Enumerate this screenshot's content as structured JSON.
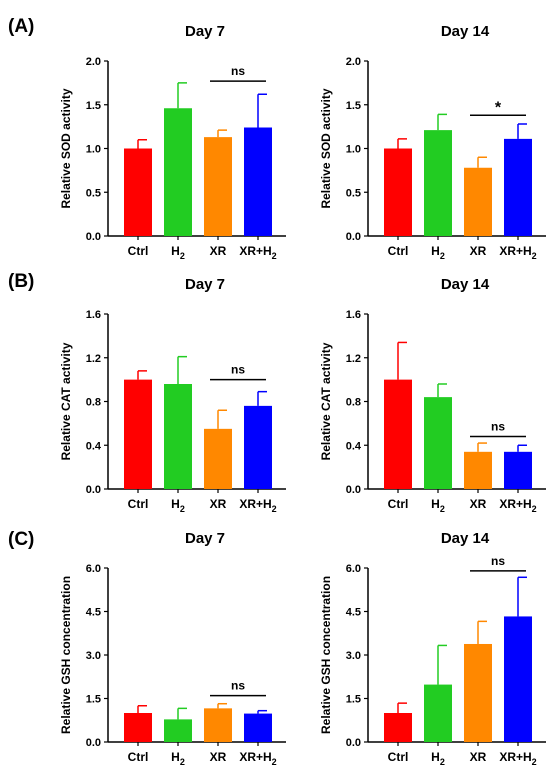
{
  "panel_labels": [
    "(A)",
    "(B)",
    "(C)"
  ],
  "chart_data": [
    {
      "type": "bar",
      "panel": "(A)",
      "title": "Day 7",
      "ylabel": "Relative SOD activity",
      "categories": [
        "Ctrl",
        "H2",
        "XR",
        "XR+H2"
      ],
      "category_parts": [
        [
          "Ctrl",
          ""
        ],
        [
          "H",
          "2"
        ],
        [
          "XR",
          ""
        ],
        [
          "XR+H",
          "2"
        ]
      ],
      "values": [
        1.0,
        1.46,
        1.13,
        1.24
      ],
      "errors": [
        0.1,
        0.29,
        0.08,
        0.38
      ],
      "colors": [
        "#ff0000",
        "#22cc22",
        "#ff8800",
        "#0000ff"
      ],
      "ylim": [
        0,
        2.0
      ],
      "yticks": [
        "0.0",
        "0.5",
        "1.0",
        "1.5",
        "2.0"
      ],
      "significance": [
        {
          "from": 2,
          "to": 3,
          "label": "ns",
          "y": 1.77
        }
      ],
      "grid": false,
      "legend": "none"
    },
    {
      "type": "bar",
      "panel": "(A)",
      "title": "Day 14",
      "ylabel": "Relative SOD activity",
      "categories": [
        "Ctrl",
        "H2",
        "XR",
        "XR+H2"
      ],
      "category_parts": [
        [
          "Ctrl",
          ""
        ],
        [
          "H",
          "2"
        ],
        [
          "XR",
          ""
        ],
        [
          "XR+H",
          "2"
        ]
      ],
      "values": [
        1.0,
        1.21,
        0.78,
        1.11
      ],
      "errors": [
        0.11,
        0.18,
        0.12,
        0.17
      ],
      "colors": [
        "#ff0000",
        "#22cc22",
        "#ff8800",
        "#0000ff"
      ],
      "ylim": [
        0,
        2.0
      ],
      "yticks": [
        "0.0",
        "0.5",
        "1.0",
        "1.5",
        "2.0"
      ],
      "significance": [
        {
          "from": 2,
          "to": 3,
          "label": "*",
          "y": 1.38
        }
      ],
      "grid": false,
      "legend": "none"
    },
    {
      "type": "bar",
      "panel": "(B)",
      "title": "Day 7",
      "ylabel": "Relative CAT activity",
      "categories": [
        "Ctrl",
        "H2",
        "XR",
        "XR+H2"
      ],
      "category_parts": [
        [
          "Ctrl",
          ""
        ],
        [
          "H",
          "2"
        ],
        [
          "XR",
          ""
        ],
        [
          "XR+H",
          "2"
        ]
      ],
      "values": [
        1.0,
        0.96,
        0.55,
        0.76
      ],
      "errors": [
        0.08,
        0.25,
        0.17,
        0.13
      ],
      "colors": [
        "#ff0000",
        "#22cc22",
        "#ff8800",
        "#0000ff"
      ],
      "ylim": [
        0,
        1.6
      ],
      "yticks": [
        "0.0",
        "0.4",
        "0.8",
        "1.2",
        "1.6"
      ],
      "significance": [
        {
          "from": 2,
          "to": 3,
          "label": "ns",
          "y": 1.0
        }
      ],
      "grid": false,
      "legend": "none"
    },
    {
      "type": "bar",
      "panel": "(B)",
      "title": "Day 14",
      "ylabel": "Relative CAT activity",
      "categories": [
        "Ctrl",
        "H2",
        "XR",
        "XR+H2"
      ],
      "category_parts": [
        [
          "Ctrl",
          ""
        ],
        [
          "H",
          "2"
        ],
        [
          "XR",
          ""
        ],
        [
          "XR+H",
          "2"
        ]
      ],
      "values": [
        1.0,
        0.84,
        0.34,
        0.34
      ],
      "errors": [
        0.34,
        0.12,
        0.08,
        0.06
      ],
      "colors": [
        "#ff0000",
        "#22cc22",
        "#ff8800",
        "#0000ff"
      ],
      "ylim": [
        0,
        1.6
      ],
      "yticks": [
        "0.0",
        "0.4",
        "0.8",
        "1.2",
        "1.6"
      ],
      "significance": [
        {
          "from": 2,
          "to": 3,
          "label": "ns",
          "y": 0.48
        }
      ],
      "grid": false,
      "legend": "none"
    },
    {
      "type": "bar",
      "panel": "(C)",
      "title": "Day 7",
      "ylabel": "Relative GSH concentration",
      "categories": [
        "Ctrl",
        "H2",
        "XR",
        "XR+H2"
      ],
      "category_parts": [
        [
          "Ctrl",
          ""
        ],
        [
          "H",
          "2"
        ],
        [
          "XR",
          ""
        ],
        [
          "XR+H",
          "2"
        ]
      ],
      "values": [
        1.0,
        0.78,
        1.16,
        0.98
      ],
      "errors": [
        0.25,
        0.38,
        0.16,
        0.1
      ],
      "colors": [
        "#ff0000",
        "#22cc22",
        "#ff8800",
        "#0000ff"
      ],
      "ylim": [
        0,
        6.0
      ],
      "yticks": [
        "0.0",
        "1.5",
        "3.0",
        "4.5",
        "6.0"
      ],
      "significance": [
        {
          "from": 2,
          "to": 3,
          "label": "ns",
          "y": 1.6
        }
      ],
      "grid": false,
      "legend": "none"
    },
    {
      "type": "bar",
      "panel": "(C)",
      "title": "Day 14",
      "ylabel": "Relative GSH concentration",
      "categories": [
        "Ctrl",
        "H2",
        "XR",
        "XR+H2"
      ],
      "category_parts": [
        [
          "Ctrl",
          ""
        ],
        [
          "H",
          "2"
        ],
        [
          "XR",
          ""
        ],
        [
          "XR+H",
          "2"
        ]
      ],
      "values": [
        1.0,
        1.98,
        3.38,
        4.33
      ],
      "errors": [
        0.34,
        1.35,
        0.78,
        1.35
      ],
      "colors": [
        "#ff0000",
        "#22cc22",
        "#ff8800",
        "#0000ff"
      ],
      "ylim": [
        0,
        6.0
      ],
      "yticks": [
        "0.0",
        "1.5",
        "3.0",
        "4.5",
        "6.0"
      ],
      "significance": [
        {
          "from": 2,
          "to": 3,
          "label": "ns",
          "y": 5.9
        }
      ],
      "grid": false,
      "legend": "none"
    }
  ]
}
